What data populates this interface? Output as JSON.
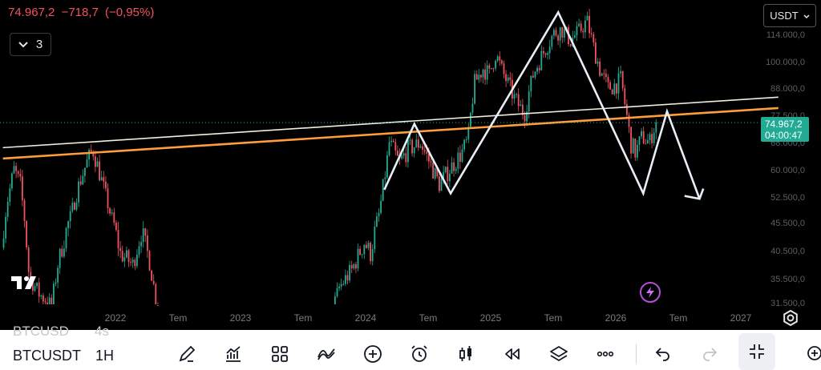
{
  "header": {
    "last_price": "74.967,2",
    "change": "−718,7",
    "change_pct": "(−0,95%)",
    "collapse_count": "3",
    "currency": "USDT"
  },
  "price_tag": {
    "price": "74.967,2",
    "countdown": "04:00:47"
  },
  "toolbar": {
    "ghost_symbol": "BTCUSD",
    "ghost_interval": "4s",
    "symbol": "BTCUSDT",
    "interval": "1H",
    "tools": [
      "pencil-icon",
      "chart-icon",
      "grid-icon",
      "indicators-icon",
      "plus-icon",
      "alarm-icon",
      "candles-icon",
      "rewind-icon",
      "layers-icon",
      "more-icon",
      "undo-icon",
      "redo-icon",
      "minimize-icon",
      "zoom-icon"
    ]
  },
  "colors": {
    "up": "#22ab94",
    "down": "#f0535f",
    "trendline_white": "#f1eedf",
    "trendline_orange": "#ff9d3b",
    "pattern": "#e8eef6",
    "accent_purple": "#b44fd8"
  },
  "chart_data": {
    "type": "candlestick",
    "x_axis": {
      "ticks": [
        {
          "label": "2022",
          "t": 2022.0
        },
        {
          "label": "Tem",
          "t": 2022.5
        },
        {
          "label": "2023",
          "t": 2023.0
        },
        {
          "label": "Tem",
          "t": 2023.5
        },
        {
          "label": "2024",
          "t": 2024.0
        },
        {
          "label": "Tem",
          "t": 2024.5
        },
        {
          "label": "2025",
          "t": 2025.0
        },
        {
          "label": "Tem",
          "t": 2025.5
        },
        {
          "label": "2026",
          "t": 2026.0
        },
        {
          "label": "Tem",
          "t": 2026.5
        },
        {
          "label": "2027",
          "t": 2027.0
        }
      ]
    },
    "y_axis": {
      "ticks": [
        {
          "label": "31.500,0",
          "v": 31500
        },
        {
          "label": "35.500,0",
          "v": 35500
        },
        {
          "label": "40.500,0",
          "v": 40500
        },
        {
          "label": "45.500,0",
          "v": 45500
        },
        {
          "label": "52.500,0",
          "v": 52500
        },
        {
          "label": "60.000,0",
          "v": 60000
        },
        {
          "label": "68.000,0",
          "v": 68000
        },
        {
          "label": "77.500,0",
          "v": 77500
        },
        {
          "label": "88.000,0",
          "v": 88000
        },
        {
          "label": "100.000,0",
          "v": 100000
        },
        {
          "label": "114.000,0",
          "v": 114000
        }
      ]
    },
    "current_price": 74967.2,
    "price_path": [
      [
        2021.1,
        41000
      ],
      [
        2021.15,
        52000
      ],
      [
        2021.2,
        60000
      ],
      [
        2021.25,
        56000
      ],
      [
        2021.32,
        36000
      ],
      [
        2021.4,
        33000
      ],
      [
        2021.5,
        31000
      ],
      [
        2021.55,
        38000
      ],
      [
        2021.65,
        47000
      ],
      [
        2021.72,
        56000
      ],
      [
        2021.78,
        62000
      ],
      [
        2021.83,
        66000
      ],
      [
        2021.9,
        57000
      ],
      [
        2021.97,
        48000
      ],
      [
        2022.05,
        40000
      ],
      [
        2022.15,
        38000
      ],
      [
        2022.22,
        44000
      ],
      [
        2022.28,
        39000
      ],
      [
        2022.35,
        30000
      ],
      [
        2022.45,
        20000
      ],
      [
        2022.6,
        22000
      ],
      [
        2022.75,
        20000
      ],
      [
        2022.85,
        17000
      ],
      [
        2022.95,
        16500
      ],
      [
        2023.05,
        22000
      ],
      [
        2023.15,
        24000
      ],
      [
        2023.22,
        28000
      ],
      [
        2023.3,
        28500
      ],
      [
        2023.4,
        27000
      ],
      [
        2023.5,
        30000
      ],
      [
        2023.6,
        26000
      ],
      [
        2023.7,
        27000
      ],
      [
        2023.8,
        34000
      ],
      [
        2023.9,
        37000
      ],
      [
        2024.0,
        42000
      ],
      [
        2024.05,
        40000
      ],
      [
        2024.12,
        48000
      ],
      [
        2024.18,
        62000
      ],
      [
        2024.2,
        68000
      ],
      [
        2024.28,
        62000
      ],
      [
        2024.35,
        66000
      ],
      [
        2024.45,
        68000
      ],
      [
        2024.55,
        60000
      ],
      [
        2024.6,
        56000
      ],
      [
        2024.7,
        61000
      ],
      [
        2024.78,
        65000
      ],
      [
        2024.83,
        69000
      ],
      [
        2024.88,
        90000
      ],
      [
        2024.95,
        97000
      ],
      [
        2025.0,
        94000
      ],
      [
        2025.05,
        104000
      ],
      [
        2025.1,
        96000
      ],
      [
        2025.2,
        84000
      ],
      [
        2025.28,
        78000
      ],
      [
        2025.35,
        94000
      ],
      [
        2025.45,
        107000
      ],
      [
        2025.52,
        115000
      ],
      [
        2025.58,
        117000
      ],
      [
        2025.65,
        111000
      ],
      [
        2025.72,
        116000
      ],
      [
        2025.78,
        122000
      ],
      [
        2025.83,
        108000
      ],
      [
        2025.88,
        97000
      ],
      [
        2025.95,
        88000
      ],
      [
        2026.02,
        90000
      ],
      [
        2026.05,
        92000
      ],
      [
        2026.1,
        77000
      ],
      [
        2026.13,
        68000
      ],
      [
        2026.17,
        65000
      ],
      [
        2026.22,
        70000
      ],
      [
        2026.28,
        68000
      ],
      [
        2026.33,
        74967
      ]
    ],
    "trendlines": [
      {
        "name": "white",
        "from": [
          2021.1,
          66500
        ],
        "to": [
          2027.3,
          84500
        ]
      },
      {
        "name": "orange",
        "from": [
          2021.1,
          63300
        ],
        "to": [
          2027.3,
          80300
        ]
      }
    ],
    "pattern_drawing": [
      [
        2024.15,
        54500
      ],
      [
        2024.39,
        74500
      ],
      [
        2024.68,
        53500
      ],
      [
        2025.54,
        127000
      ],
      [
        2026.22,
        53500
      ],
      [
        2026.41,
        79000
      ],
      [
        2026.67,
        52000
      ]
    ],
    "arrow_head": [
      [
        2026.55,
        52800
      ],
      [
        2026.67,
        52000
      ],
      [
        2026.7,
        54800
      ]
    ]
  }
}
